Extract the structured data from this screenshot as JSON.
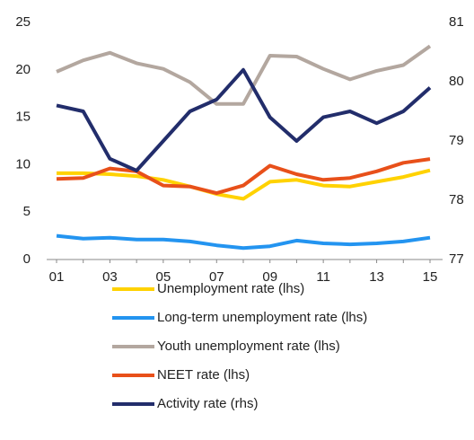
{
  "chart_data": {
    "type": "line",
    "categories": [
      "01",
      null,
      "03",
      null,
      "05",
      null,
      "07",
      null,
      "09",
      null,
      "11",
      null,
      "13",
      null,
      "15"
    ],
    "series": [
      {
        "name": "Unemployment rate (lhs)",
        "color": "#ffd200",
        "values": [
          9.1,
          9.1,
          9.0,
          8.8,
          8.4,
          7.7,
          6.9,
          6.4,
          8.2,
          8.4,
          7.8,
          7.7,
          8.2,
          8.7,
          9.4
        ]
      },
      {
        "name": "Long-term unemployment rate (lhs)",
        "color": "#2394f0",
        "values": [
          2.5,
          2.2,
          2.3,
          2.1,
          2.1,
          1.9,
          1.5,
          1.2,
          1.4,
          2.0,
          1.7,
          1.6,
          1.7,
          1.9,
          2.3
        ]
      },
      {
        "name": "Youth unemployment rate (lhs)",
        "color": "#b3a79f",
        "values": [
          19.8,
          21.0,
          21.8,
          20.7,
          20.1,
          18.7,
          16.4,
          16.4,
          21.5,
          21.4,
          20.1,
          19.0,
          19.9,
          20.5,
          22.5
        ]
      },
      {
        "name": "NEET rate (lhs)",
        "color": "#e8501a",
        "values": [
          8.5,
          8.6,
          9.6,
          9.3,
          7.8,
          7.7,
          7.0,
          7.8,
          9.9,
          9.0,
          8.4,
          8.6,
          9.3,
          10.2,
          10.6
        ]
      },
      {
        "name": "Activity rate  (rhs)",
        "color": "#222d6b",
        "axis": "y2",
        "values": [
          79.6,
          79.5,
          78.7,
          78.5,
          79.0,
          79.5,
          79.7,
          80.2,
          79.4,
          79.0,
          79.4,
          79.5,
          79.3,
          79.5,
          79.9
        ]
      }
    ],
    "ylim": [
      0,
      25
    ],
    "yticks": [
      0,
      5,
      10,
      15,
      20,
      25
    ],
    "y2lim": [
      77,
      81
    ],
    "y2ticks": [
      77,
      78,
      79,
      80,
      81
    ],
    "grid": false,
    "legend": "bottom"
  }
}
